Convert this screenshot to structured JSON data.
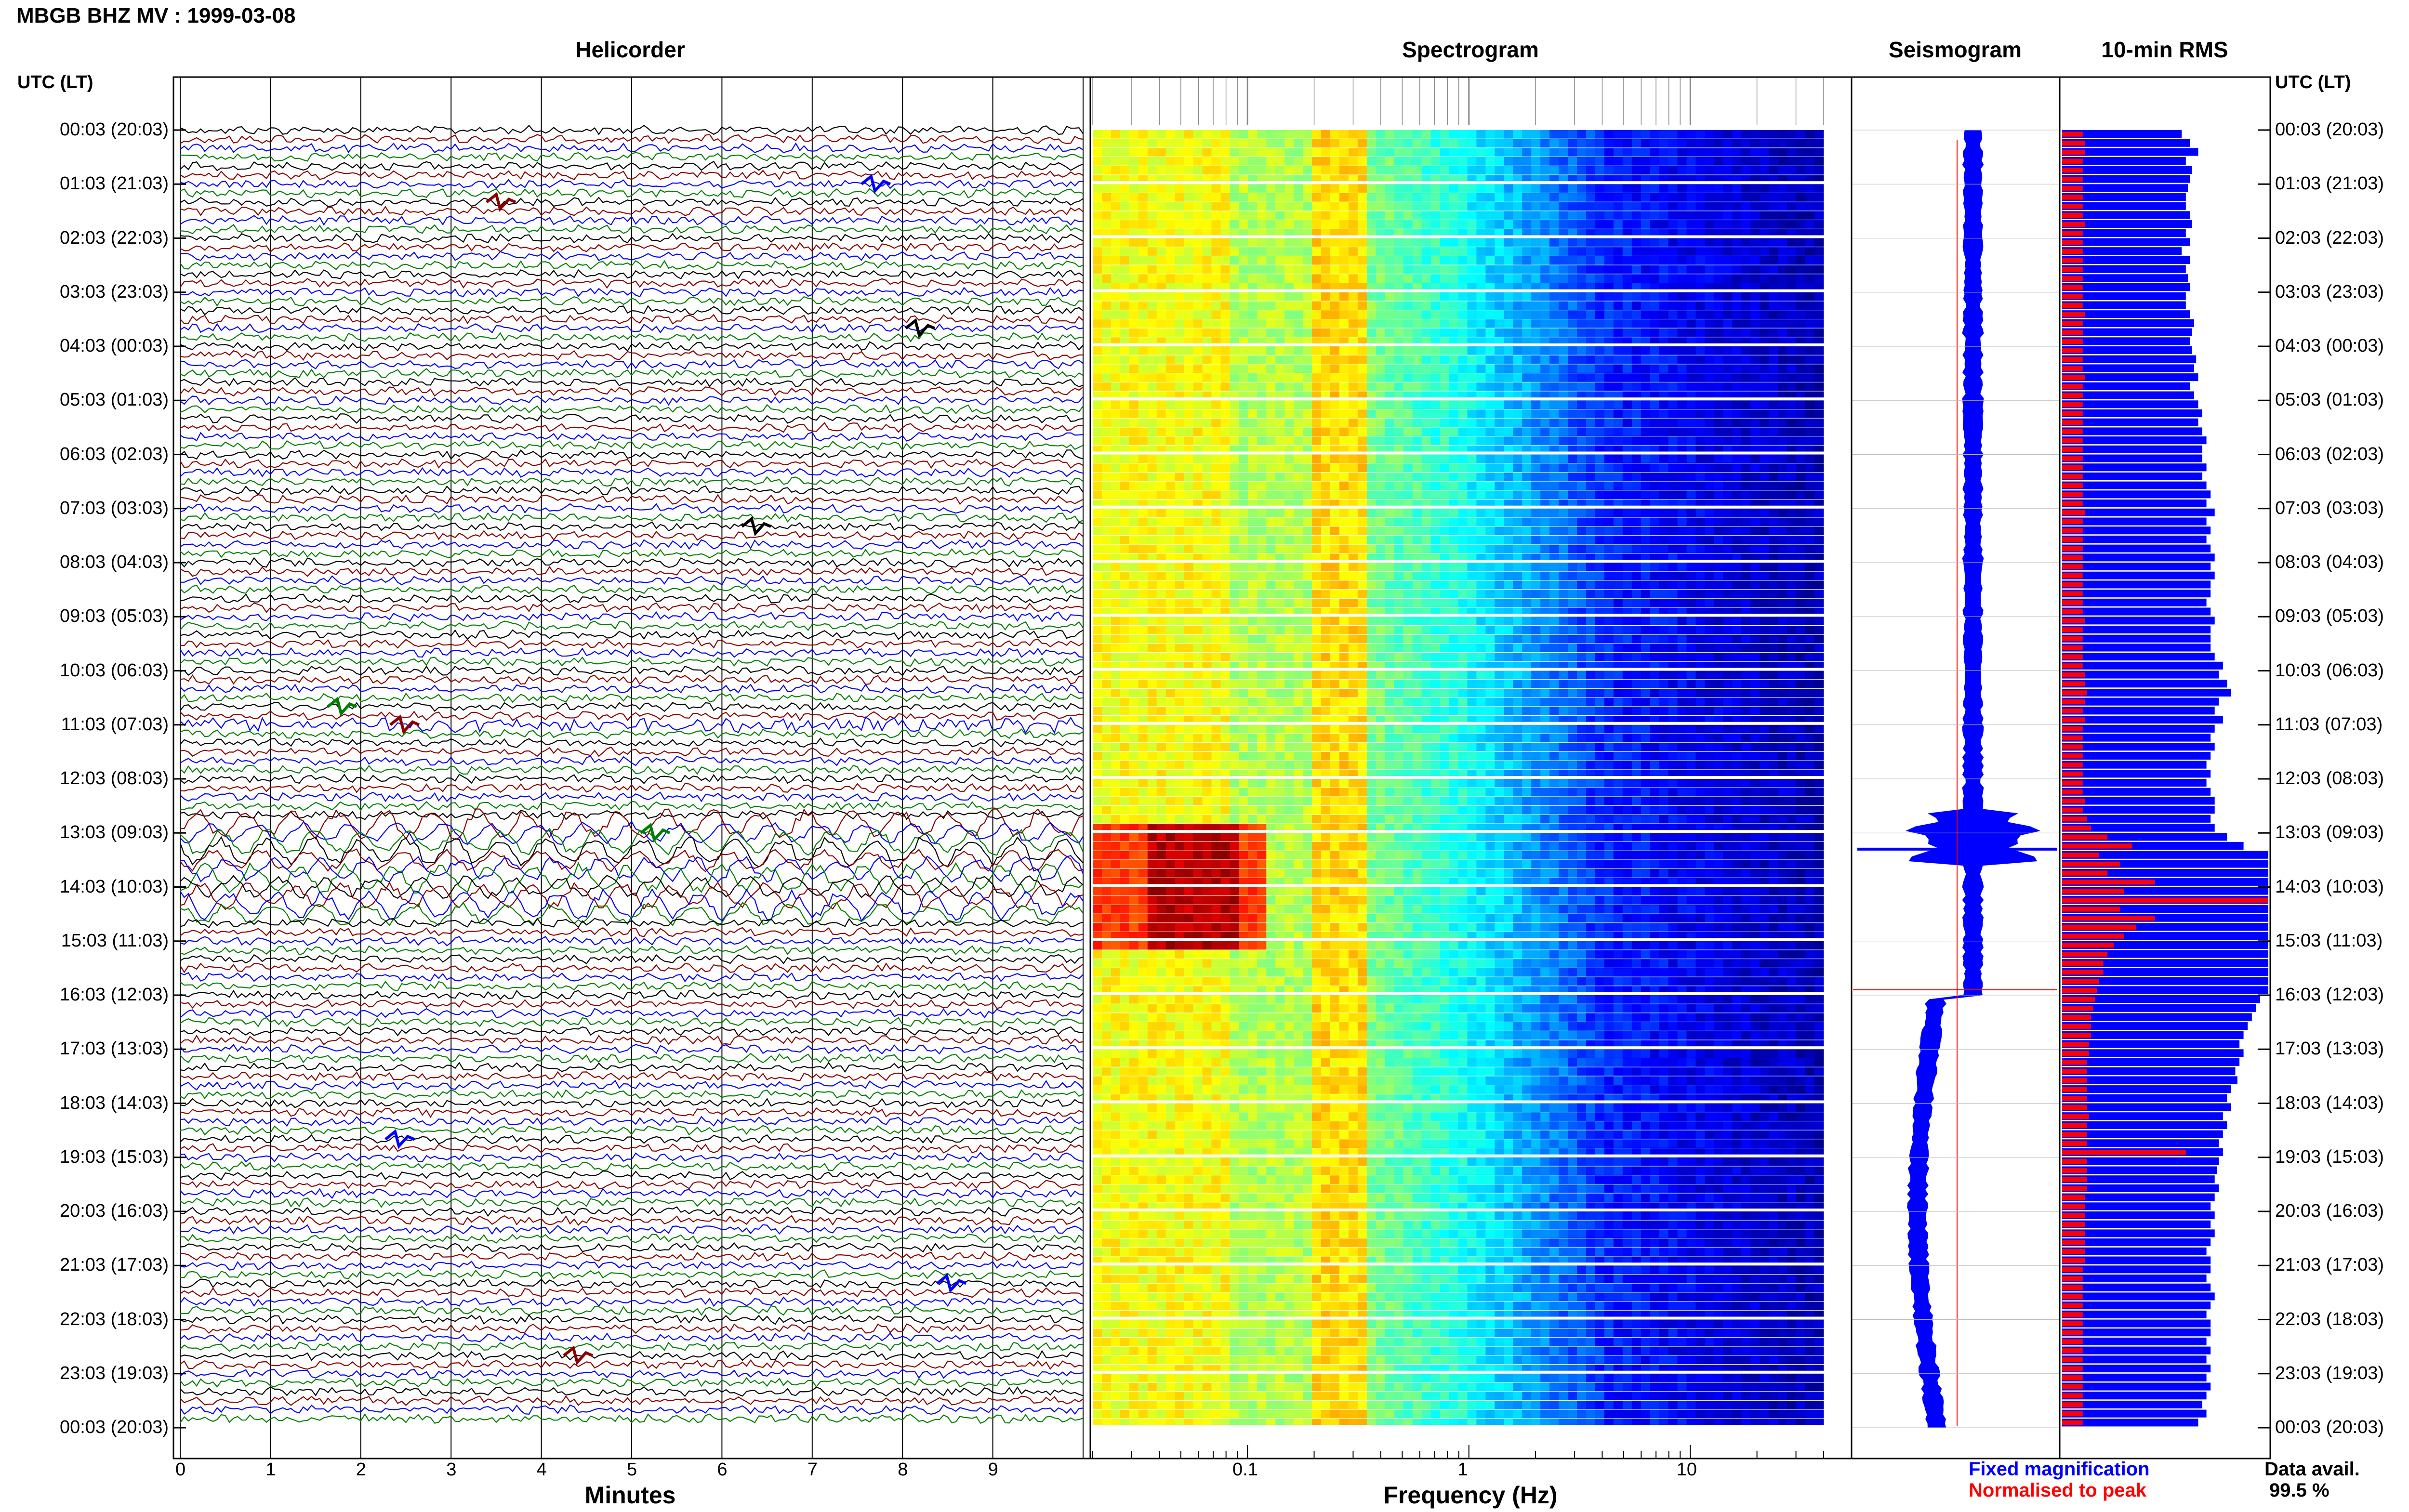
{
  "header": {
    "title": "MBGB BHZ MV : 1999-03-08"
  },
  "panels": {
    "helicorder": "Helicorder",
    "spectrogram": "Spectrogram",
    "seismogram": "Seismogram",
    "rms": "10-min RMS"
  },
  "axis": {
    "left_header": "UTC (LT)",
    "right_header": "UTC (LT)",
    "minutes_label": "Minutes",
    "frequency_label": "Frequency (Hz)"
  },
  "legend": {
    "fixed": "Fixed magnification",
    "normalised": "Normalised to peak",
    "data_avail_label": "Data avail.",
    "data_avail_value": "99.5 %"
  },
  "colors": {
    "trace": [
      "#000000",
      "#8b0000",
      "#0000ff",
      "#008000"
    ],
    "seismo": "#0000ff",
    "seismo_peak": "#ff0000",
    "rms_fixed": "#0000ff",
    "rms_norm": "#ff0000"
  },
  "chart_data": [
    {
      "type": "line",
      "title": "Helicorder",
      "xlabel": "Minutes",
      "x_ticks": [
        "0",
        "1",
        "2",
        "3",
        "4",
        "5",
        "6",
        "7",
        "8",
        "9"
      ],
      "xlim": [
        0,
        10
      ],
      "row_span_minutes": 10,
      "y_tick_labels": [
        "00:03 (20:03)",
        "01:03 (21:03)",
        "02:03 (22:03)",
        "03:03 (23:03)",
        "04:03 (00:03)",
        "05:03 (01:03)",
        "06:03 (02:03)",
        "07:03 (03:03)",
        "08:03 (04:03)",
        "09:03 (05:03)",
        "10:03 (06:03)",
        "11:03 (07:03)",
        "12:03 (08:03)",
        "13:03 (09:03)",
        "14:03 (10:03)",
        "15:03 (11:03)",
        "16:03 (12:03)",
        "17:03 (13:03)",
        "18:03 (14:03)",
        "19:03 (15:03)",
        "20:03 (16:03)",
        "21:03 (17:03)",
        "22:03 (18:03)",
        "23:03 (19:03)",
        "00:03 (20:03)"
      ],
      "rows": 144
    },
    {
      "type": "heatmap",
      "title": "Spectrogram",
      "xlabel": "Frequency (Hz)",
      "x_scale": "log",
      "x_tick_labels": [
        "0.1",
        "1",
        "10"
      ],
      "xlim": [
        0.02,
        40
      ],
      "colormap": "jet"
    },
    {
      "type": "line",
      "title": "Seismogram",
      "series": [
        {
          "name": "Fixed magnification",
          "color": "#0000ff"
        },
        {
          "name": "Normalised to peak",
          "color": "#ff0000"
        }
      ]
    },
    {
      "type": "bar",
      "title": "10-min RMS",
      "orientation": "horizontal",
      "series": [
        {
          "name": "Fixed magnification",
          "color": "#0000ff",
          "values": [
            0.58,
            0.62,
            0.66,
            0.6,
            0.63,
            0.62,
            0.61,
            0.6,
            0.6,
            0.62,
            0.63,
            0.6,
            0.62,
            0.58,
            0.62,
            0.6,
            0.61,
            0.62,
            0.6,
            0.6,
            0.62,
            0.64,
            0.63,
            0.62,
            0.63,
            0.65,
            0.64,
            0.66,
            0.62,
            0.64,
            0.66,
            0.68,
            0.66,
            0.68,
            0.7,
            0.68,
            0.68,
            0.7,
            0.68,
            0.7,
            0.72,
            0.7,
            0.74,
            0.7,
            0.72,
            0.7,
            0.72,
            0.74,
            0.72,
            0.74,
            0.72,
            0.72,
            0.7,
            0.72,
            0.74,
            0.72,
            0.72,
            0.72,
            0.74,
            0.78,
            0.76,
            0.8,
            0.82,
            0.76,
            0.74,
            0.78,
            0.74,
            0.72,
            0.74,
            0.72,
            0.7,
            0.72,
            0.7,
            0.72,
            0.74,
            0.74,
            0.72,
            0.74,
            0.8,
            0.88,
            1.0,
            1.0,
            1.0,
            1.0,
            1.0,
            1.0,
            1.0,
            1.0,
            1.0,
            1.0,
            1.0,
            1.0,
            1.0,
            1.0,
            1.0,
            1.0,
            0.96,
            0.94,
            0.92,
            0.9,
            0.88,
            0.86,
            0.88,
            0.86,
            0.84,
            0.85,
            0.82,
            0.8,
            0.82,
            0.78,
            0.8,
            0.78,
            0.76,
            0.78,
            0.76,
            0.75,
            0.74,
            0.76,
            0.74,
            0.72,
            0.74,
            0.72,
            0.74,
            0.72,
            0.7,
            0.72,
            0.72,
            0.7,
            0.72,
            0.74,
            0.72,
            0.7,
            0.72,
            0.72,
            0.7,
            0.72,
            0.7,
            0.72,
            0.7,
            0.72,
            0.7,
            0.68,
            0.7,
            0.66
          ]
        },
        {
          "name": "Normalised to peak",
          "color": "#ff0000",
          "values": [
            0.1,
            0.11,
            0.11,
            0.1,
            0.1,
            0.1,
            0.1,
            0.1,
            0.1,
            0.1,
            0.11,
            0.1,
            0.1,
            0.1,
            0.1,
            0.1,
            0.1,
            0.1,
            0.1,
            0.1,
            0.11,
            0.1,
            0.1,
            0.1,
            0.1,
            0.1,
            0.1,
            0.11,
            0.1,
            0.1,
            0.1,
            0.1,
            0.1,
            0.1,
            0.1,
            0.1,
            0.1,
            0.1,
            0.1,
            0.1,
            0.1,
            0.1,
            0.11,
            0.1,
            0.1,
            0.1,
            0.1,
            0.1,
            0.1,
            0.1,
            0.1,
            0.1,
            0.1,
            0.1,
            0.11,
            0.1,
            0.1,
            0.1,
            0.1,
            0.1,
            0.11,
            0.11,
            0.12,
            0.11,
            0.1,
            0.11,
            0.1,
            0.1,
            0.1,
            0.1,
            0.1,
            0.1,
            0.1,
            0.1,
            0.11,
            0.1,
            0.12,
            0.14,
            0.22,
            0.34,
            0.18,
            0.28,
            0.22,
            0.45,
            0.3,
            1.0,
            0.28,
            0.45,
            0.36,
            0.3,
            0.25,
            0.22,
            0.2,
            0.2,
            0.18,
            0.17,
            0.16,
            0.15,
            0.14,
            0.14,
            0.14,
            0.13,
            0.13,
            0.12,
            0.12,
            0.12,
            0.12,
            0.12,
            0.12,
            0.13,
            0.12,
            0.12,
            0.12,
            0.6,
            0.12,
            0.12,
            0.12,
            0.12,
            0.11,
            0.11,
            0.11,
            0.11,
            0.11,
            0.11,
            0.11,
            0.11,
            0.1,
            0.1,
            0.1,
            0.1,
            0.1,
            0.1,
            0.1,
            0.1,
            0.1,
            0.1,
            0.1,
            0.1,
            0.1,
            0.1,
            0.1,
            0.1,
            0.1,
            0.1
          ]
        }
      ]
    }
  ]
}
